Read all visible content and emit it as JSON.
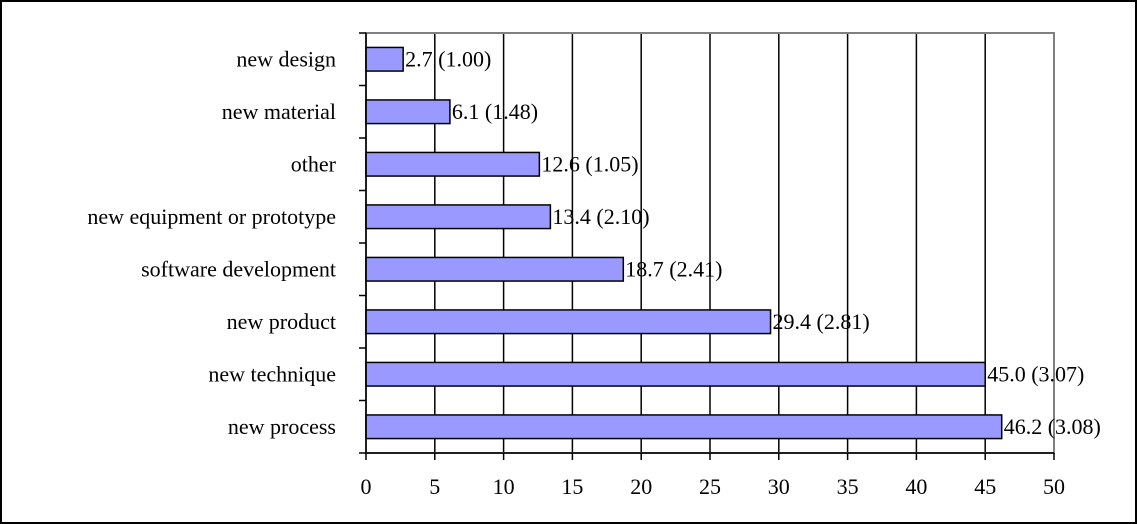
{
  "chart_data": {
    "type": "bar",
    "orientation": "horizontal",
    "categories": [
      "new design",
      "new material",
      "other",
      "new equipment or prototype",
      "software development",
      "new product",
      "new technique",
      "new process"
    ],
    "values": [
      2.7,
      6.1,
      12.6,
      13.4,
      18.7,
      29.4,
      45.0,
      46.2
    ],
    "data_labels": [
      "2.7 (1.00)",
      "6.1 (1.48)",
      "12.6 (1.05)",
      "13.4 (2.10)",
      "18.7 (2.41)",
      "29.4 (2.81)",
      "45.0 (3.07)",
      "46.2 (3.08)"
    ],
    "xlim": [
      0,
      50
    ],
    "x_ticks": [
      "0",
      "5",
      "10",
      "15",
      "20",
      "25",
      "30",
      "35",
      "40",
      "45",
      "50"
    ],
    "title": "",
    "xlabel": "",
    "ylabel": "",
    "grid": "vertical",
    "legend": "none",
    "bar_color": "#9999ff",
    "bar_edge_color": "#000000",
    "plot_border_color": "#808080"
  }
}
